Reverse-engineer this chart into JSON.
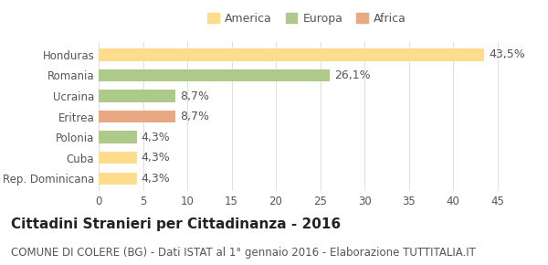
{
  "categories": [
    "Honduras",
    "Romania",
    "Ucraina",
    "Eritrea",
    "Polonia",
    "Cuba",
    "Rep. Dominicana"
  ],
  "values": [
    43.5,
    26.1,
    8.7,
    8.7,
    4.3,
    4.3,
    4.3
  ],
  "labels": [
    "43,5%",
    "26,1%",
    "8,7%",
    "8,7%",
    "4,3%",
    "4,3%",
    "4,3%"
  ],
  "colors": [
    "#FDDD8C",
    "#AECA8A",
    "#AECA8A",
    "#E8A882",
    "#AECA8A",
    "#FDDD8C",
    "#FDDD8C"
  ],
  "legend_items": [
    {
      "label": "America",
      "color": "#FDDD8C"
    },
    {
      "label": "Europa",
      "color": "#AECA8A"
    },
    {
      "label": "Africa",
      "color": "#E8A882"
    }
  ],
  "xlim": [
    0,
    47
  ],
  "xticks": [
    0,
    5,
    10,
    15,
    20,
    25,
    30,
    35,
    40,
    45
  ],
  "title": "Cittadini Stranieri per Cittadinanza - 2016",
  "subtitle": "COMUNE DI COLERE (BG) - Dati ISTAT al 1° gennaio 2016 - Elaborazione TUTTITALIA.IT",
  "background_color": "#ffffff",
  "grid_color": "#e0e0e0",
  "bar_height": 0.6,
  "label_fontsize": 9,
  "tick_fontsize": 8.5,
  "title_fontsize": 11,
  "subtitle_fontsize": 8.5
}
